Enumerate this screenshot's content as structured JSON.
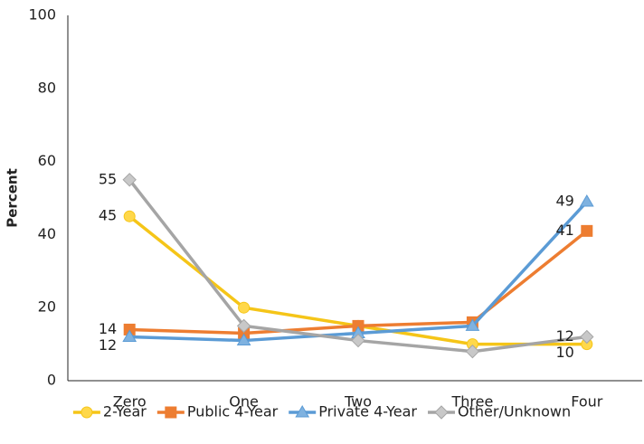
{
  "chart_data": {
    "type": "line",
    "y_label": "Percent",
    "categories": [
      "Zero",
      "One",
      "Two",
      "Three",
      "Four"
    ],
    "series": [
      {
        "name": "2-Year",
        "color": "#f5c518",
        "marker": "circle",
        "values": [
          45,
          20,
          15,
          10,
          10
        ],
        "label_indices": [
          0,
          4
        ]
      },
      {
        "name": "Public 4-Year",
        "color": "#ed7d31",
        "marker": "square",
        "values": [
          14,
          13,
          15,
          16,
          41
        ],
        "label_indices": [
          0,
          4
        ]
      },
      {
        "name": "Private 4-Year",
        "color": "#5b9bd5",
        "marker": "triangle",
        "values": [
          12,
          11,
          13,
          15,
          49
        ],
        "label_indices": [
          0,
          4
        ]
      },
      {
        "name": "Other/Unknown",
        "color": "#a5a5a5",
        "marker": "diamond",
        "values": [
          55,
          15,
          11,
          8,
          12
        ],
        "label_indices": [
          0,
          4
        ]
      }
    ],
    "ylim": [
      0,
      100
    ],
    "yticks": [
      0,
      20,
      40,
      60,
      80,
      100
    ],
    "grid": false,
    "legend": "bottom"
  }
}
